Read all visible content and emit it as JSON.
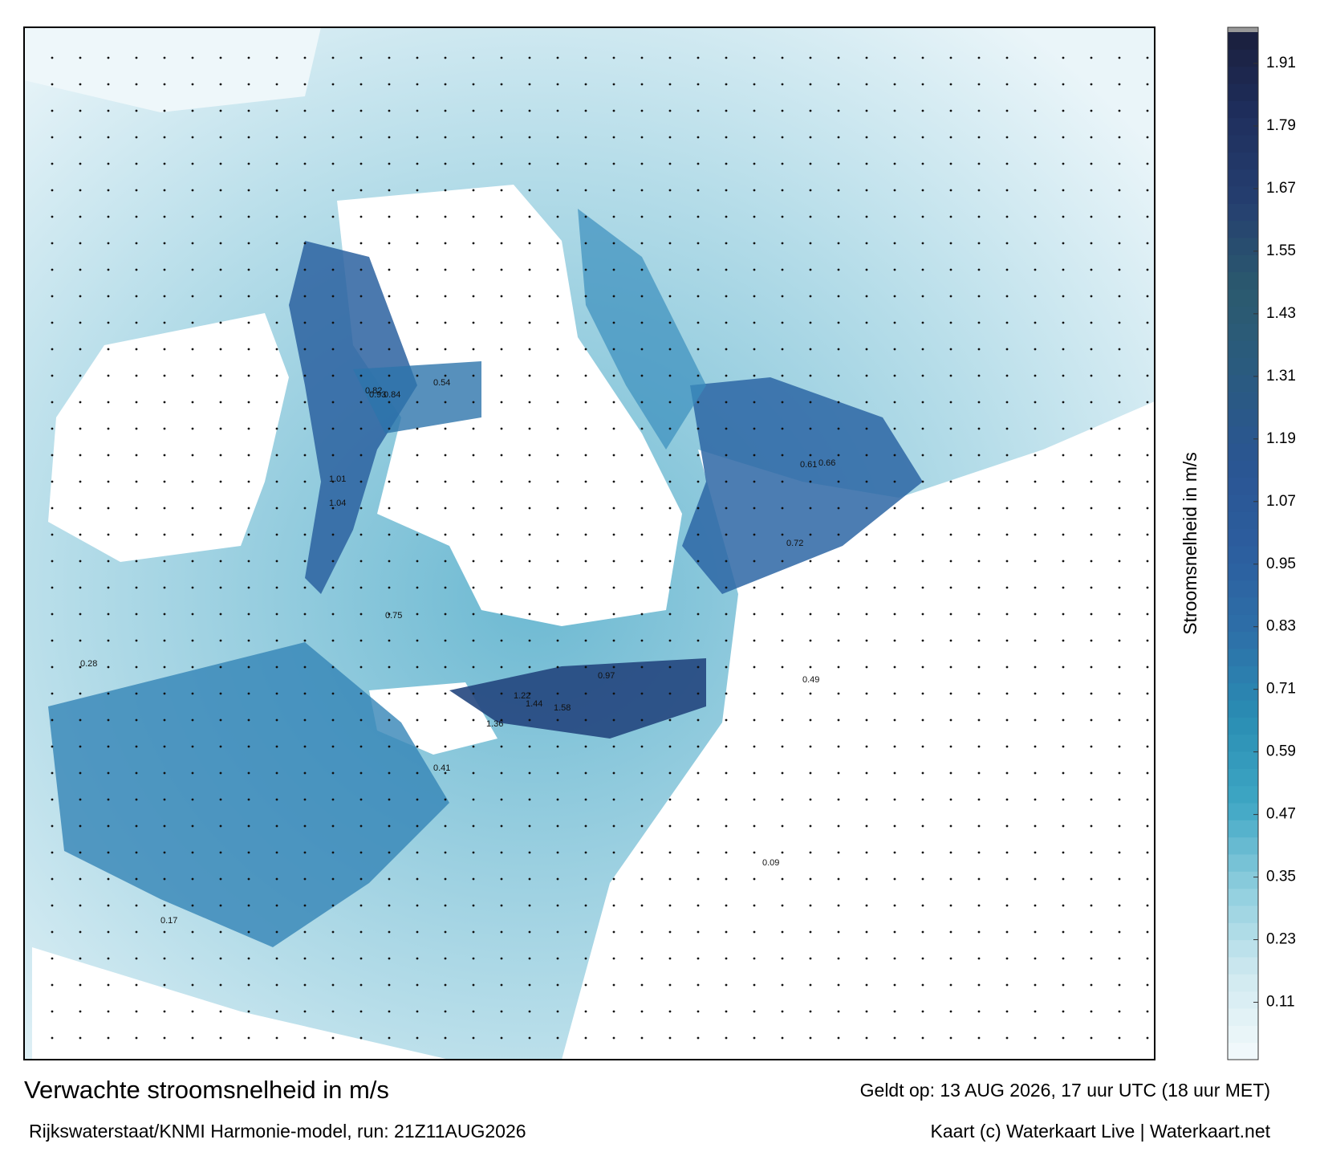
{
  "title": "Verwachte stroomsnelheid in m/s",
  "subtitle": "Rijkswaterstaat/KNMI Harmonie-model, run: 21Z11AUG2026",
  "valid_time": "Geldt op: 13 AUG 2026, 17 uur UTC (18 uur MET)",
  "credit": "Kaart (c) Waterkaart Live | Waterkaart.net",
  "colorbar": {
    "label": "Stroomsnelheid in m/s",
    "lim": [
      0,
      1.97
    ],
    "ticks": [
      0.11,
      0.23,
      0.35,
      0.47,
      0.59,
      0.71,
      0.83,
      0.95,
      1.07,
      1.19,
      1.31,
      1.43,
      1.55,
      1.67,
      1.79,
      1.91
    ],
    "colors": [
      "#f4fafc",
      "#cfe9f0",
      "#8fcede",
      "#3ea6c4",
      "#2a8db3",
      "#2d6fa8",
      "#2c5d9e",
      "#2a5592",
      "#2a5b80",
      "#2b5a6e",
      "#253f70",
      "#1f2f5e",
      "#1a1f3d"
    ]
  },
  "map_labels": [
    1.44,
    1.58,
    1.36,
    1.22,
    0.97,
    0.93,
    1.01,
    1.04,
    0.84,
    0.82,
    0.75,
    0.61,
    0.49,
    0.41,
    0.28,
    0.17,
    0.09,
    0.54,
    0.66,
    0.72
  ]
}
